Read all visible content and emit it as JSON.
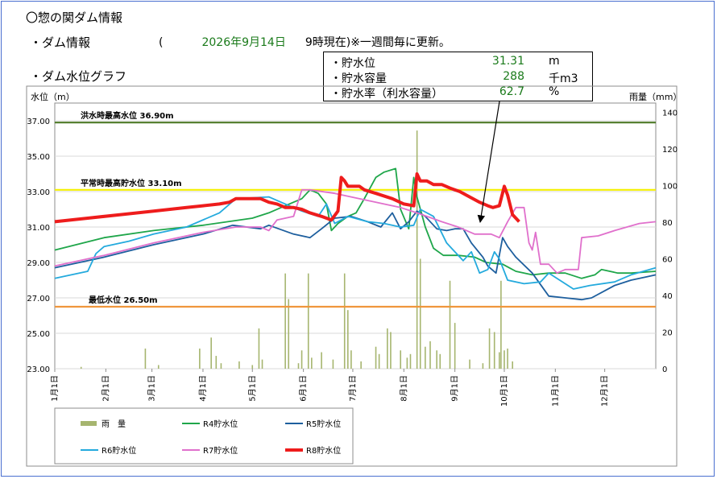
{
  "header": {
    "title": "〇惣の関ダム情報",
    "section_info": "・ダム情報",
    "section_graph": "・ダム水位グラフ"
  },
  "status": {
    "open_paren": "(",
    "date": "2026年9月14日",
    "time_note": "9時現在)",
    "update_note": "※一週間毎に更新。"
  },
  "info_box": {
    "rows": [
      {
        "label": "・貯水位",
        "value": "31.31",
        "unit": "m"
      },
      {
        "label": "・貯水容量",
        "value": "288",
        "unit": "千m3"
      },
      {
        "label": "・貯水率（利水容量）",
        "value": "62.7",
        "unit": "%"
      }
    ]
  },
  "chart_data": {
    "type": "line",
    "ylabel_left": "水位（m）",
    "ylabel_right": "雨量（mm）",
    "x_ticks": [
      "1月1日",
      "2月1日",
      "3月1日",
      "4月1日",
      "5月1日",
      "6月1日",
      "7月1日",
      "8月1日",
      "9月1日",
      "10月1日",
      "11月1日",
      "12月1日"
    ],
    "ylim_left": [
      23.0,
      38.0
    ],
    "yticks_left": [
      "23.00",
      "25.00",
      "27.00",
      "29.00",
      "31.00",
      "33.00",
      "35.00",
      "37.00"
    ],
    "ylim_right": [
      0,
      145
    ],
    "yticks_right": [
      "0",
      "20",
      "40",
      "60",
      "80",
      "100",
      "120",
      "140"
    ],
    "reference_lines": [
      {
        "label": "洪水時最高水位 36.90m",
        "value": 36.9,
        "color": "#4f7a28"
      },
      {
        "label": "平常時最高貯水位 33.10m",
        "value": 33.1,
        "color": "#f5f000"
      },
      {
        "label": "最低水位 26.50m",
        "value": 26.5,
        "color": "#f0963c"
      }
    ],
    "rainfall": {
      "name": "雨　量",
      "color": "#a6b56f",
      "bars": [
        [
          16,
          1
        ],
        [
          55,
          11
        ],
        [
          63,
          2
        ],
        [
          88,
          11
        ],
        [
          95,
          17
        ],
        [
          98,
          7
        ],
        [
          101,
          3
        ],
        [
          112,
          4
        ],
        [
          120,
          2
        ],
        [
          124,
          22
        ],
        [
          126,
          5
        ],
        [
          140,
          52
        ],
        [
          142,
          38
        ],
        [
          148,
          3
        ],
        [
          150,
          10
        ],
        [
          154,
          52
        ],
        [
          156,
          6
        ],
        [
          162,
          9
        ],
        [
          169,
          5
        ],
        [
          176,
          52
        ],
        [
          178,
          32
        ],
        [
          180,
          10
        ],
        [
          186,
          4
        ],
        [
          195,
          12
        ],
        [
          197,
          8
        ],
        [
          202,
          22
        ],
        [
          204,
          20
        ],
        [
          210,
          10
        ],
        [
          214,
          6
        ],
        [
          216,
          8
        ],
        [
          220,
          130
        ],
        [
          222,
          60
        ],
        [
          225,
          12
        ],
        [
          228,
          15
        ],
        [
          232,
          10
        ],
        [
          234,
          8
        ],
        [
          240,
          48
        ],
        [
          243,
          25
        ],
        [
          252,
          5
        ],
        [
          260,
          3
        ],
        [
          264,
          22
        ],
        [
          267,
          20
        ],
        [
          270,
          9
        ],
        [
          271,
          48
        ],
        [
          273,
          10
        ],
        [
          275,
          11
        ],
        [
          278,
          4
        ]
      ]
    },
    "series": [
      {
        "name": "R4貯水位",
        "color": "#1fa64a",
        "width": 1.8,
        "points": [
          [
            0,
            29.7
          ],
          [
            30,
            30.4
          ],
          [
            60,
            30.8
          ],
          [
            90,
            31.1
          ],
          [
            120,
            31.5
          ],
          [
            130,
            31.8
          ],
          [
            140,
            32.2
          ],
          [
            150,
            32.6
          ],
          [
            155,
            33.1
          ],
          [
            160,
            32.9
          ],
          [
            165,
            32.3
          ],
          [
            168,
            30.8
          ],
          [
            172,
            31.2
          ],
          [
            178,
            31.6
          ],
          [
            183,
            31.8
          ],
          [
            188,
            32.6
          ],
          [
            195,
            33.8
          ],
          [
            200,
            34.1
          ],
          [
            207,
            34.3
          ],
          [
            210,
            32.0
          ],
          [
            215,
            30.9
          ],
          [
            218,
            33.8
          ],
          [
            220,
            32.7
          ],
          [
            225,
            31.0
          ],
          [
            230,
            29.8
          ],
          [
            236,
            29.4
          ],
          [
            245,
            29.4
          ],
          [
            255,
            29.3
          ],
          [
            262,
            29.0
          ],
          [
            272,
            28.9
          ],
          [
            280,
            28.5
          ],
          [
            290,
            28.3
          ],
          [
            300,
            28.4
          ],
          [
            310,
            28.4
          ],
          [
            320,
            28.1
          ],
          [
            328,
            28.3
          ],
          [
            332,
            28.6
          ],
          [
            342,
            28.4
          ],
          [
            350,
            28.4
          ],
          [
            365,
            28.5
          ]
        ]
      },
      {
        "name": "R5貯水位",
        "color": "#1e5f9e",
        "width": 1.8,
        "points": [
          [
            0,
            28.7
          ],
          [
            30,
            29.3
          ],
          [
            60,
            30.0
          ],
          [
            90,
            30.6
          ],
          [
            108,
            31.1
          ],
          [
            125,
            30.9
          ],
          [
            130,
            31.1
          ],
          [
            145,
            30.6
          ],
          [
            155,
            30.4
          ],
          [
            162,
            30.9
          ],
          [
            170,
            31.5
          ],
          [
            180,
            31.6
          ],
          [
            190,
            31.3
          ],
          [
            198,
            31.0
          ],
          [
            205,
            31.8
          ],
          [
            210,
            30.9
          ],
          [
            215,
            31.3
          ],
          [
            220,
            31.9
          ],
          [
            225,
            31.6
          ],
          [
            232,
            30.9
          ],
          [
            238,
            30.8
          ],
          [
            243,
            30.9
          ],
          [
            248,
            30.9
          ],
          [
            253,
            30.1
          ],
          [
            260,
            29.3
          ],
          [
            263,
            28.8
          ],
          [
            268,
            28.4
          ],
          [
            272,
            30.4
          ],
          [
            275,
            29.9
          ],
          [
            280,
            29.3
          ],
          [
            290,
            28.4
          ],
          [
            300,
            27.1
          ],
          [
            310,
            27.0
          ],
          [
            320,
            26.9
          ],
          [
            326,
            27.0
          ],
          [
            340,
            27.7
          ],
          [
            350,
            28.0
          ],
          [
            360,
            28.2
          ],
          [
            365,
            28.3
          ]
        ]
      },
      {
        "name": "R6貯水位",
        "color": "#24aadd",
        "width": 1.8,
        "points": [
          [
            0,
            28.1
          ],
          [
            20,
            28.5
          ],
          [
            25,
            29.5
          ],
          [
            30,
            29.9
          ],
          [
            45,
            30.2
          ],
          [
            60,
            30.6
          ],
          [
            80,
            31.0
          ],
          [
            100,
            31.8
          ],
          [
            110,
            32.6
          ],
          [
            130,
            32.7
          ],
          [
            140,
            32.3
          ],
          [
            150,
            31.9
          ],
          [
            160,
            31.6
          ],
          [
            165,
            32.3
          ],
          [
            170,
            31.2
          ],
          [
            178,
            31.6
          ],
          [
            190,
            31.3
          ],
          [
            200,
            31.2
          ],
          [
            210,
            31.0
          ],
          [
            218,
            31.1
          ],
          [
            222,
            32.0
          ],
          [
            230,
            31.6
          ],
          [
            238,
            30.1
          ],
          [
            242,
            29.7
          ],
          [
            248,
            29.1
          ],
          [
            253,
            29.6
          ],
          [
            258,
            28.4
          ],
          [
            263,
            28.6
          ],
          [
            267,
            29.6
          ],
          [
            270,
            29.2
          ],
          [
            275,
            28.0
          ],
          [
            285,
            27.8
          ],
          [
            295,
            27.9
          ],
          [
            300,
            28.4
          ],
          [
            315,
            27.5
          ],
          [
            325,
            27.7
          ],
          [
            340,
            27.9
          ],
          [
            350,
            28.3
          ],
          [
            365,
            28.7
          ]
        ]
      },
      {
        "name": "R7貯水位",
        "color": "#e070cc",
        "width": 1.8,
        "points": [
          [
            0,
            28.8
          ],
          [
            30,
            29.4
          ],
          [
            60,
            30.1
          ],
          [
            90,
            30.7
          ],
          [
            110,
            31.0
          ],
          [
            120,
            31.0
          ],
          [
            125,
            31.0
          ],
          [
            130,
            30.8
          ],
          [
            135,
            31.4
          ],
          [
            145,
            31.6
          ],
          [
            150,
            33.1
          ],
          [
            155,
            33.1
          ],
          [
            170,
            32.9
          ],
          [
            190,
            32.5
          ],
          [
            210,
            32.1
          ],
          [
            220,
            31.8
          ],
          [
            235,
            31.3
          ],
          [
            245,
            31.0
          ],
          [
            255,
            30.6
          ],
          [
            265,
            30.6
          ],
          [
            270,
            30.4
          ],
          [
            275,
            31.3
          ],
          [
            280,
            32.1
          ],
          [
            285,
            32.1
          ],
          [
            288,
            30.1
          ],
          [
            290,
            29.7
          ],
          [
            292,
            30.7
          ],
          [
            295,
            28.9
          ],
          [
            300,
            28.9
          ],
          [
            305,
            28.4
          ],
          [
            310,
            28.6
          ],
          [
            315,
            28.6
          ],
          [
            318,
            28.6
          ],
          [
            320,
            30.4
          ],
          [
            330,
            30.5
          ],
          [
            340,
            30.8
          ],
          [
            355,
            31.2
          ],
          [
            365,
            31.3
          ]
        ]
      },
      {
        "name": "R8貯水位",
        "color": "#ee1c1c",
        "width": 4,
        "points": [
          [
            0,
            31.3
          ],
          [
            20,
            31.5
          ],
          [
            40,
            31.7
          ],
          [
            60,
            31.9
          ],
          [
            80,
            32.1
          ],
          [
            90,
            32.2
          ],
          [
            100,
            32.3
          ],
          [
            106,
            32.4
          ],
          [
            110,
            32.6
          ],
          [
            120,
            32.6
          ],
          [
            125,
            32.6
          ],
          [
            130,
            32.4
          ],
          [
            135,
            32.3
          ],
          [
            140,
            32.1
          ],
          [
            145,
            32.1
          ],
          [
            150,
            32.0
          ],
          [
            155,
            31.8
          ],
          [
            162,
            31.6
          ],
          [
            168,
            31.4
          ],
          [
            172,
            31.9
          ],
          [
            174,
            33.8
          ],
          [
            176,
            33.6
          ],
          [
            178,
            33.3
          ],
          [
            182,
            33.3
          ],
          [
            185,
            33.3
          ],
          [
            188,
            33.1
          ],
          [
            195,
            32.9
          ],
          [
            205,
            32.6
          ],
          [
            212,
            32.3
          ],
          [
            218,
            32.2
          ],
          [
            220,
            34.0
          ],
          [
            222,
            33.6
          ],
          [
            226,
            33.6
          ],
          [
            230,
            33.4
          ],
          [
            235,
            33.4
          ],
          [
            240,
            33.2
          ],
          [
            246,
            33.0
          ],
          [
            252,
            32.7
          ],
          [
            258,
            32.4
          ],
          [
            263,
            32.2
          ],
          [
            266,
            32.1
          ],
          [
            270,
            32.2
          ],
          [
            273,
            33.3
          ],
          [
            275,
            32.8
          ],
          [
            278,
            31.7
          ],
          [
            282,
            31.3
          ]
        ]
      }
    ],
    "legend_placement": "bottom"
  }
}
